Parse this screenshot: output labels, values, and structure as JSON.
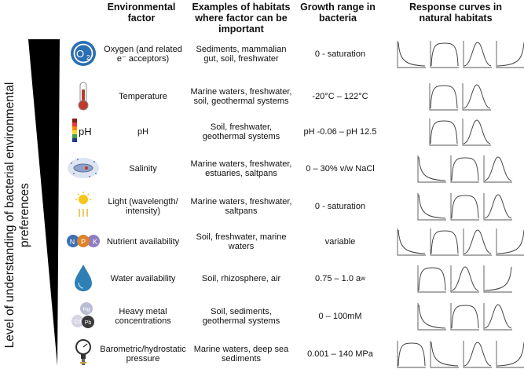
{
  "headers": {
    "factor": "Environmental factor",
    "habitats": "Examples of habitats where factor can be important",
    "growth": "Growth range in bacteria",
    "response": "Response curves in natural habitats"
  },
  "side_label": "Level of understanding of bacterial environmental preferences",
  "rows": [
    {
      "icon": "oxygen-o2-icon",
      "factor": "Oxygen (and related e⁻ acceptors)",
      "habitats": "Sediments, mammalian gut, soil, freshwater",
      "growth": "0 - saturation",
      "curves": [
        "decay",
        "plateau",
        "peak",
        "rise"
      ]
    },
    {
      "icon": "thermometer-icon",
      "factor": "Temperature",
      "habitats": "Marine waters, freshwater, soil, geothermal systems",
      "growth": "-20°C – 122°C",
      "curves": [
        "plateau",
        "peak"
      ]
    },
    {
      "icon": "ph-color-scale-icon",
      "factor": "pH",
      "habitats": "Soil, freshwater, geothermal systems",
      "growth": "pH -0.06 – pH 12.5",
      "curves": [
        "plateau",
        "peak"
      ]
    },
    {
      "icon": "salinity-bacterium-icon",
      "factor": "Salinity",
      "habitats": "Marine waters, freshwater, estuaries, saltpans",
      "growth": "0 – 30% v/w NaCl",
      "curves": [
        "decay",
        "plateau",
        "peak"
      ]
    },
    {
      "icon": "sun-light-icon",
      "factor": "Light (wavelength/ intensity)",
      "habitats": "Marine waters, freshwater, saltpans",
      "growth": "0 - saturation",
      "curves": [
        "decay",
        "plateau",
        "peak"
      ]
    },
    {
      "icon": "npk-nutrient-icon",
      "factor": "Nutrient availability",
      "habitats": "Soil, freshwater, marine waters",
      "growth": "variable",
      "curves": [
        "decay",
        "plateau",
        "peak",
        "rise"
      ]
    },
    {
      "icon": "water-drop-icon",
      "factor": "Water availability",
      "habitats": "Soil, rhizosphere, air",
      "growth": "0.75 – 1.0 a",
      "growth_sub": "w",
      "curves": [
        "plateau",
        "peak",
        "rise"
      ]
    },
    {
      "icon": "heavy-metal-icon",
      "factor": "Heavy metal concentrations",
      "habitats": "Soil, sediments, geothermal systems",
      "growth": "0 – 100mM",
      "curves": [
        "decay",
        "plateau",
        "peak"
      ]
    },
    {
      "icon": "pressure-gauge-icon",
      "factor": "Barometric/hydrostatic pressure",
      "habitats": "Marine waters, deep sea sediments",
      "growth": "0.001 – 140 MPa",
      "curves": [
        "plateau",
        "decay",
        "peak",
        "rise"
      ]
    }
  ],
  "icon_text": {
    "o2": "O",
    "o2_sub": "2",
    "ph": "pH",
    "n": "N",
    "p": "P",
    "k": "K",
    "hg": "Hg",
    "pb": "Pb",
    "cd": "Cd"
  }
}
